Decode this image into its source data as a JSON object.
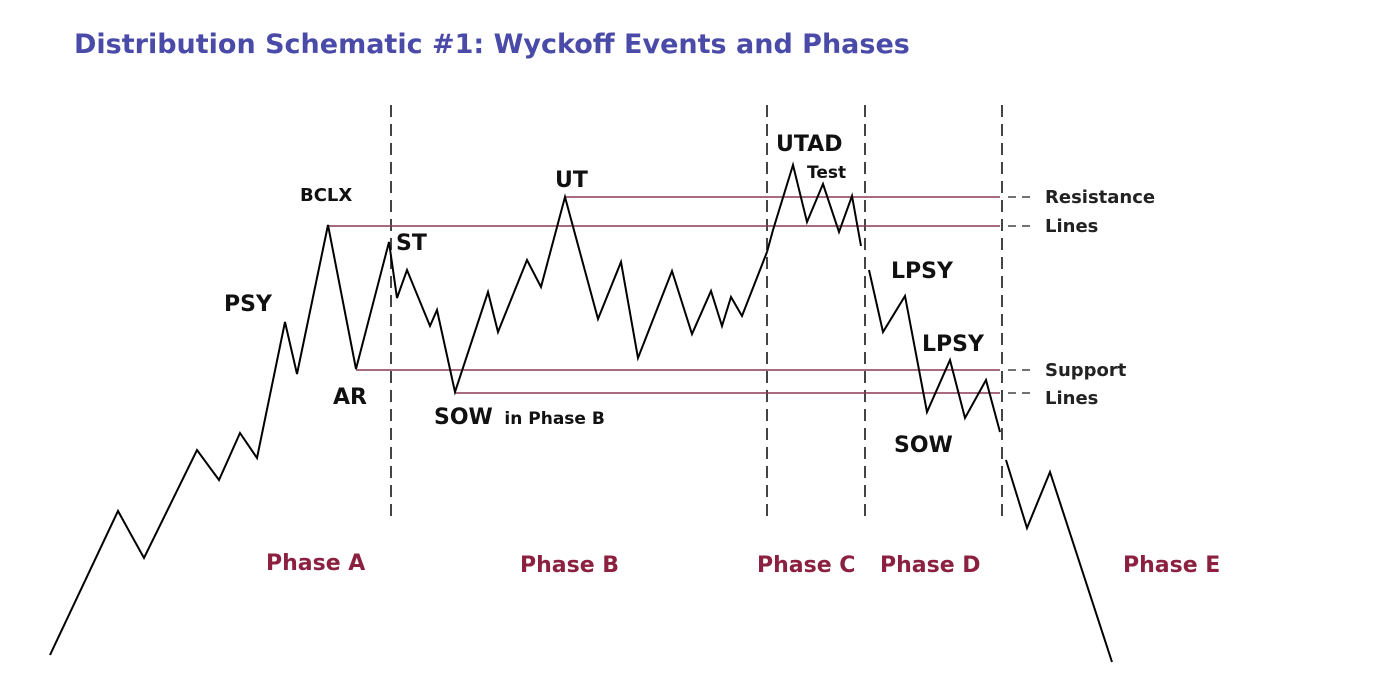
{
  "title": "Distribution Schematic #1: Wyckoff Events and Phases",
  "colors": {
    "title": "#4a4aa8",
    "phase_label": "#8b2040",
    "level_line": "#8b3a52",
    "price_line": "#000000",
    "divider": "#444444"
  },
  "events": {
    "psy": "PSY",
    "bclx": "BCLX",
    "ar": "AR",
    "st": "ST",
    "sow_phase_b": "SOW",
    "sow_phase_b_suffix": "in Phase B",
    "ut": "UT",
    "utad": "UTAD",
    "test": "Test",
    "lpsy_1": "LPSY",
    "lpsy_2": "LPSY",
    "sow": "SOW"
  },
  "side_labels": {
    "resistance_line1": "Resistance",
    "resistance_line2": "Lines",
    "support_line1": "Support",
    "support_line2": "Lines"
  },
  "phases": {
    "a": "Phase A",
    "b": "Phase B",
    "c": "Phase C",
    "d": "Phase D",
    "e": "Phase E"
  }
}
